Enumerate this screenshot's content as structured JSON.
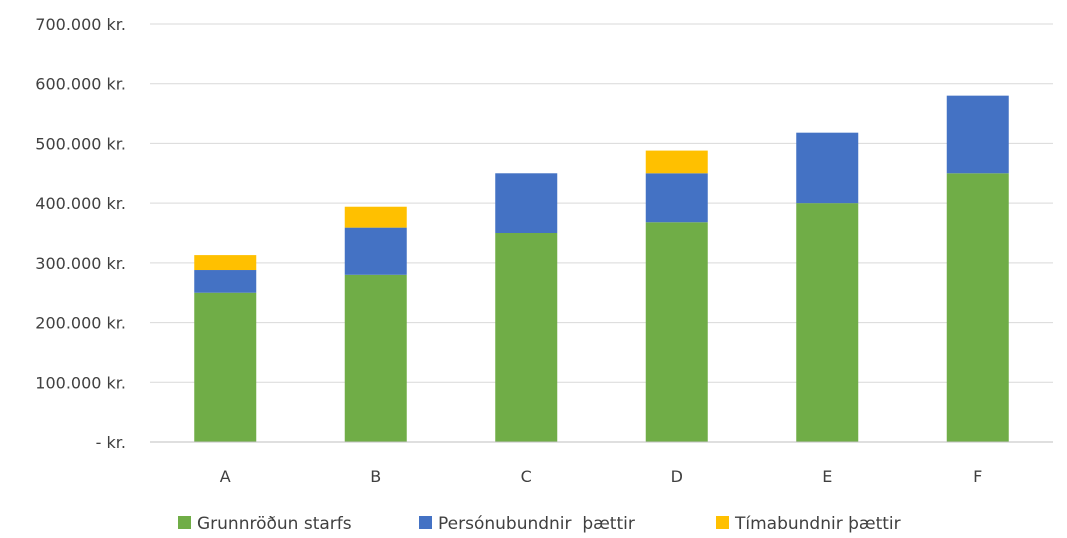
{
  "chart_data": {
    "type": "bar",
    "stacked": true,
    "categories": [
      "A",
      "B",
      "C",
      "D",
      "E",
      "F"
    ],
    "series": [
      {
        "name": "Grunnröðun starfs",
        "color": "#70ad47",
        "values": [
          250000,
          280000,
          350000,
          368000,
          400000,
          450000
        ]
      },
      {
        "name": "Persónubundnir  þættir",
        "color": "#4472c4",
        "values": [
          38000,
          79000,
          100000,
          82000,
          118000,
          130000
        ]
      },
      {
        "name": "Tímabundnir þættir",
        "color": "#ffc000",
        "values": [
          25000,
          35000,
          0,
          38000,
          0,
          0
        ]
      }
    ],
    "ylim": [
      0,
      700000
    ],
    "yticks": [
      0,
      100000,
      200000,
      300000,
      400000,
      500000,
      600000,
      700000
    ],
    "ytick_labels": [
      "-   kr.",
      "100.000 kr.",
      "200.000 kr.",
      "300.000 kr.",
      "400.000 kr.",
      "500.000 kr.",
      "600.000 kr.",
      "700.000 kr."
    ],
    "grid": true,
    "legend_position": "bottom"
  }
}
